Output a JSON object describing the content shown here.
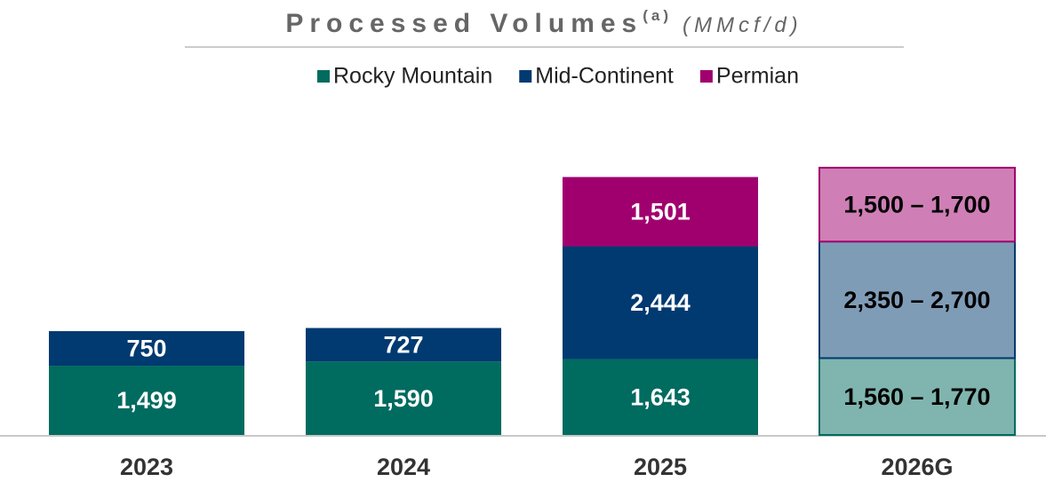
{
  "chart_data": {
    "type": "stacked_bar",
    "title": "Processed Volumes",
    "title_note": "(a)",
    "unit": "(MMcf/d)",
    "categories": [
      "2023",
      "2024",
      "2025",
      "2026G"
    ],
    "ylim": [
      0,
      6000
    ],
    "legend": "top",
    "series": [
      {
        "name": "Rocky Mountain",
        "color": "#006b5f",
        "colors": [
          "#006b5f",
          "#006b5f",
          "#006b5f",
          "#7fb5ae"
        ],
        "border_colors": [
          null,
          null,
          null,
          "#006b5f"
        ],
        "label_colors": [
          "#ffffff",
          "#ffffff",
          "#ffffff",
          "#000000"
        ],
        "values": [
          1499,
          1590,
          1643,
          1665
        ],
        "value_labels": [
          "1,499",
          "1,590",
          "1,643",
          "1,560 – 1,770"
        ]
      },
      {
        "name": "Mid-Continent",
        "color": "#003a70",
        "colors": [
          "#003a70",
          "#003a70",
          "#003a70",
          "#7f9cb7"
        ],
        "border_colors": [
          null,
          null,
          null,
          "#003a70"
        ],
        "label_colors": [
          "#ffffff",
          "#ffffff",
          "#ffffff",
          "#000000"
        ],
        "values": [
          750,
          727,
          2444,
          2525
        ],
        "value_labels": [
          "750",
          "727",
          "2,444",
          "2,350 – 2,700"
        ]
      },
      {
        "name": "Permian",
        "color": "#a0006e",
        "colors": [
          null,
          null,
          "#a0006e",
          "#cf7fb6"
        ],
        "border_colors": [
          null,
          null,
          null,
          "#a0006e"
        ],
        "label_colors": [
          null,
          null,
          "#ffffff",
          "#000000"
        ],
        "values": [
          null,
          null,
          1501,
          1600
        ],
        "value_labels": [
          null,
          null,
          "1,501",
          "1,500 – 1,700"
        ]
      }
    ]
  }
}
